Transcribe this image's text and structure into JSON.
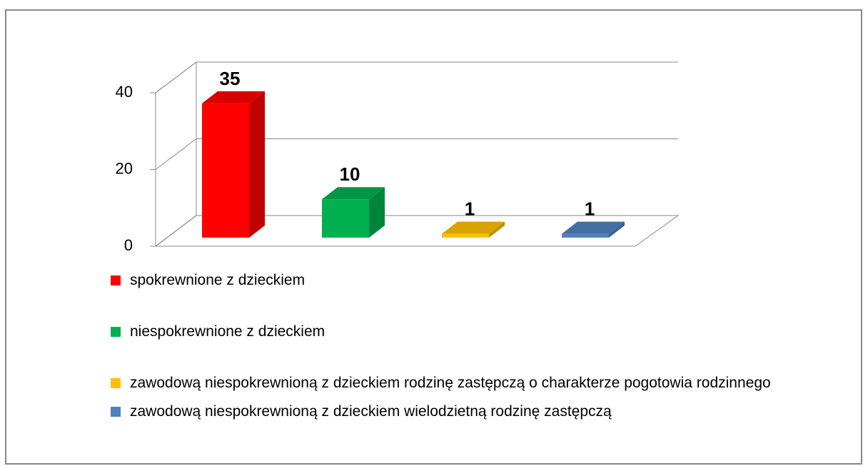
{
  "chart_data": {
    "type": "bar3d",
    "series": [
      {
        "name": "spokrewnione z dzieckiem",
        "color": "#ff0000",
        "values": [
          35
        ]
      },
      {
        "name": "niespokrewnione z dzieckiem",
        "color": "#00b050",
        "values": [
          10
        ]
      },
      {
        "name": "zawodową niespokrewnioną z dzieckiem rodzinę zastępczą o charakterze pogotowia rodzinnego",
        "color": "#ffc000",
        "values": [
          1
        ]
      },
      {
        "name": "zawodową niespokrewnioną z dzieckiem wielodzietną rodzinę zastępczą",
        "color": "#4f81bd",
        "values": [
          1
        ]
      }
    ],
    "ylim": [
      0,
      40
    ],
    "yticks": [
      0,
      20,
      40
    ],
    "grid": true,
    "legend": "bottom"
  }
}
